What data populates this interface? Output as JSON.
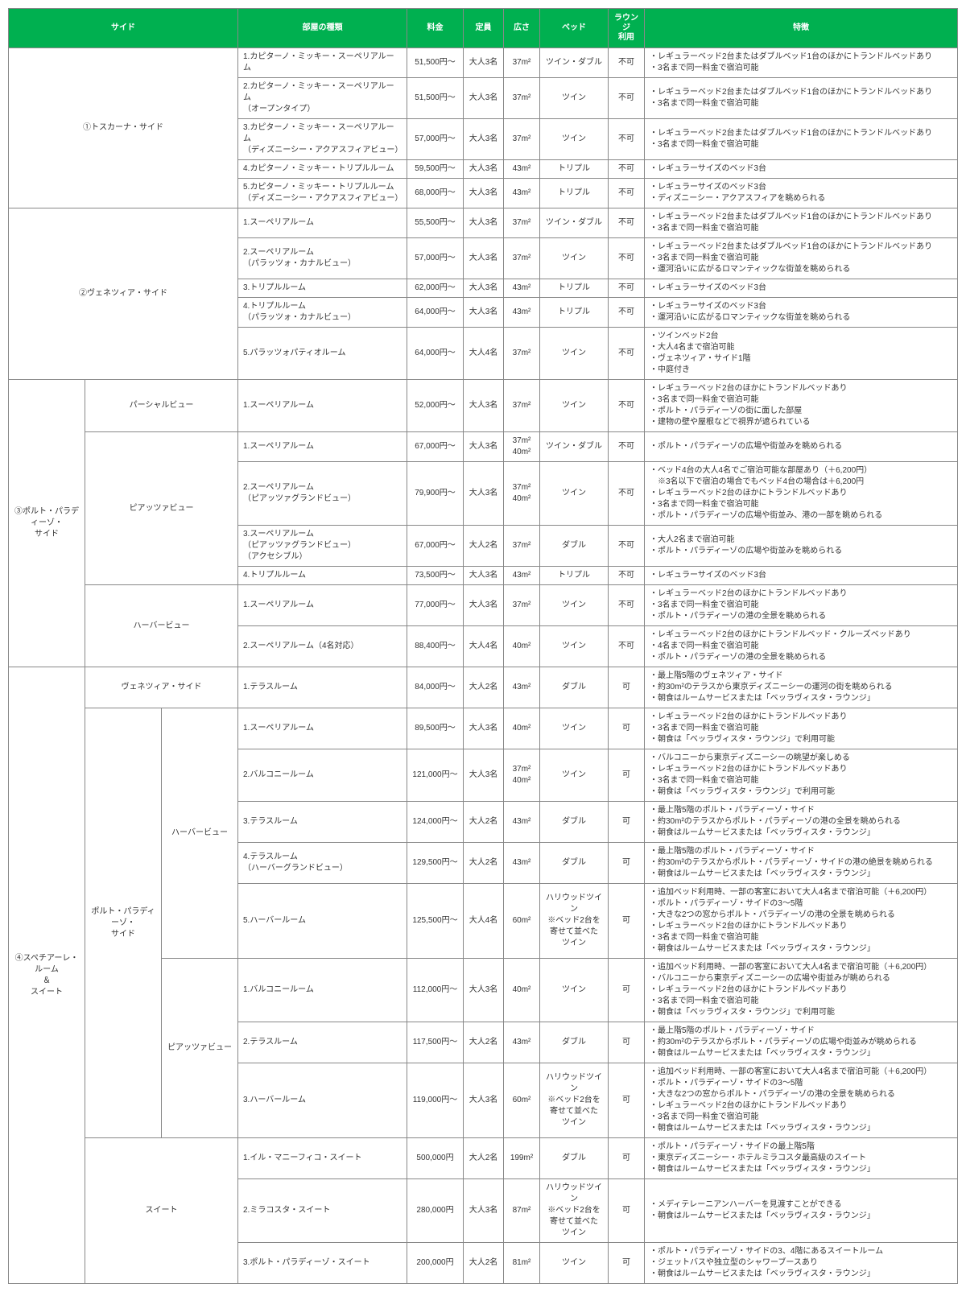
{
  "colors": {
    "header_bg": "#00b050",
    "header_fg": "#ffffff",
    "border": "#888888",
    "text": "#333333",
    "bg": "#ffffff"
  },
  "typography": {
    "font_size_pt": 10,
    "header_font_size_pt": 10
  },
  "headers": {
    "side": "サイド",
    "room_type": "部屋の種類",
    "price": "料金",
    "capacity": "定員",
    "size": "広さ",
    "bed": "ベッド",
    "lounge": "ラウンジ\n利用",
    "features": "特徴"
  },
  "columns": [
    "side",
    "room_type",
    "price",
    "capacity",
    "size",
    "bed",
    "lounge",
    "features"
  ],
  "groups": [
    {
      "side_label": "①トスカーナ・サイド",
      "side_span": 3,
      "rows": [
        {
          "room": "1.カピターノ・ミッキー・スーペリアルーム",
          "price": "51,500円～",
          "cap": "大人3名",
          "size": "37m²",
          "bed": "ツイン・ダブル",
          "lounge": "不可",
          "feat": "・レギュラーベッド2台またはダブルベッド1台のほかにトランドルベッドあり\n・3名まで同一料金で宿泊可能"
        },
        {
          "room": "2.カピターノ・ミッキー・スーペリアルーム\n（オープンタイプ）",
          "price": "51,500円～",
          "cap": "大人3名",
          "size": "37m²",
          "bed": "ツイン",
          "lounge": "不可",
          "feat": "・レギュラーベッド2台またはダブルベッド1台のほかにトランドルベッドあり\n・3名まで同一料金で宿泊可能"
        },
        {
          "room": "3.カピターノ・ミッキー・スーペリアルーム\n（ディズニーシー・アクアスフィアビュー）",
          "price": "57,000円～",
          "cap": "大人3名",
          "size": "37m²",
          "bed": "ツイン",
          "lounge": "不可",
          "feat": "・レギュラーベッド2台またはダブルベッド1台のほかにトランドルベッドあり\n・3名まで同一料金で宿泊可能"
        },
        {
          "room": "4.カピターノ・ミッキー・トリプルルーム",
          "price": "59,500円～",
          "cap": "大人3名",
          "size": "43m²",
          "bed": "トリプル",
          "lounge": "不可",
          "feat": "・レギュラーサイズのベッド3台"
        },
        {
          "room": "5.カピターノ・ミッキー・トリプルルーム\n（ディズニーシー・アクアスフィアビュー）",
          "price": "68,000円～",
          "cap": "大人3名",
          "size": "43m²",
          "bed": "トリプル",
          "lounge": "不可",
          "feat": "・レギュラーサイズのベッド3台\n・ディズニーシー・アクアスフィアを眺められる"
        }
      ]
    },
    {
      "side_label": "②ヴェネツィア・サイド",
      "side_span": 3,
      "rows": [
        {
          "room": "1.スーペリアルーム",
          "price": "55,500円～",
          "cap": "大人3名",
          "size": "37m²",
          "bed": "ツイン・ダブル",
          "lounge": "不可",
          "feat": "・レギュラーベッド2台またはダブルベッド1台のほかにトランドルベッドあり\n・3名まで同一料金で宿泊可能"
        },
        {
          "room": "2.スーペリアルーム\n（パラッツォ・カナルビュー）",
          "price": "57,000円～",
          "cap": "大人3名",
          "size": "37m²",
          "bed": "ツイン",
          "lounge": "不可",
          "feat": "・レギュラーベッド2台またはダブルベッド1台のほかにトランドルベッドあり\n・3名まで同一料金で宿泊可能\n・運河沿いに広がるロマンティックな街並を眺められる"
        },
        {
          "room": "3.トリプルルーム",
          "price": "62,000円～",
          "cap": "大人3名",
          "size": "43m²",
          "bed": "トリプル",
          "lounge": "不可",
          "feat": "・レギュラーサイズのベッド3台"
        },
        {
          "room": "4.トリプルルーム\n（パラッツォ・カナルビュー）",
          "price": "64,000円～",
          "cap": "大人3名",
          "size": "43m²",
          "bed": "トリプル",
          "lounge": "不可",
          "feat": "・レギュラーサイズのベッド3台\n・運河沿いに広がるロマンティックな街並を眺められる"
        },
        {
          "room": "5.パラッツォパティオルーム",
          "price": "64,000円～",
          "cap": "大人4名",
          "size": "37m²",
          "bed": "ツイン",
          "lounge": "不可",
          "feat": "・ツインベッド2台\n・大人4名まで宿泊可能\n・ヴェネツィア・サイド1階\n・中庭付き"
        }
      ]
    },
    {
      "side_label": "③ポルト・パラディーゾ・\nサイド",
      "side_span": 1,
      "subgroups": [
        {
          "sub_label": "パーシャルビュー",
          "sub_span": 2,
          "rows": [
            {
              "room": "1.スーペリアルーム",
              "price": "52,000円～",
              "cap": "大人3名",
              "size": "37m²",
              "bed": "ツイン",
              "lounge": "不可",
              "feat": "・レギュラーベッド2台のほかにトランドルベッドあり\n・3名まで同一料金で宿泊可能\n・ポルト・パラディーゾの街に面した部屋\n・建物の壁や屋根などで視界が遮られている"
            }
          ]
        },
        {
          "sub_label": "ピアッツァビュー",
          "sub_span": 2,
          "rows": [
            {
              "room": "1.スーペリアルーム",
              "price": "67,000円～",
              "cap": "大人3名",
              "size": "37m²\n40m²",
              "bed": "ツイン・ダブル",
              "lounge": "不可",
              "feat": "・ポルト・パラディーゾの広場や街並みを眺められる"
            },
            {
              "room": "2.スーペリアルーム\n（ピアッツァグランドビュー）",
              "price": "79,900円～",
              "cap": "大人3名",
              "size": "37m²\n40m²",
              "bed": "ツイン",
              "lounge": "不可",
              "feat": "・ベッド4台の大人4名でご宿泊可能な部屋あり（＋6,200円）\n　※3名以下で宿泊の場合でもベッド4台の場合は＋6,200円\n・レギュラーベッド2台のほかにトランドルベッドあり\n・3名まで同一料金で宿泊可能\n・ポルト・パラディーゾの広場や街並み、港の一部を眺められる"
            },
            {
              "room": "3.スーペリアルーム\n（ピアッツァグランドビュー）\n（アクセシブル）",
              "price": "67,000円～",
              "cap": "大人2名",
              "size": "37m²",
              "bed": "ダブル",
              "lounge": "不可",
              "feat": "・大人2名まで宿泊可能\n・ポルト・パラディーゾの広場や街並みを眺められる"
            },
            {
              "room": "4.トリプルルーム",
              "price": "73,500円～",
              "cap": "大人3名",
              "size": "43m²",
              "bed": "トリプル",
              "lounge": "不可",
              "feat": "・レギュラーサイズのベッド3台"
            }
          ]
        },
        {
          "sub_label": "ハーバービュー",
          "sub_span": 2,
          "rows": [
            {
              "room": "1.スーペリアルーム",
              "price": "77,000円～",
              "cap": "大人3名",
              "size": "37m²",
              "bed": "ツイン",
              "lounge": "不可",
              "feat": "・レギュラーベッド2台のほかにトランドルベッドあり\n・3名まで同一料金で宿泊可能\n・ポルト・パラディーゾの港の全景を眺められる"
            },
            {
              "room": "2.スーペリアルーム（4名対応）",
              "price": "88,400円～",
              "cap": "大人4名",
              "size": "40m²",
              "bed": "ツイン",
              "lounge": "不可",
              "feat": "・レギュラーベッド2台のほかにトランドルベッド・クルーズベッドあり\n・4名まで同一料金で宿泊可能\n・ポルト・パラディーゾの港の全景を眺められる"
            }
          ]
        }
      ]
    },
    {
      "side_label": "④スペチアーレ・ルーム\n＆\nスイート",
      "side_span": 1,
      "subgroups": [
        {
          "sub_label": "ヴェネツィア・サイド",
          "sub_span": 2,
          "rows": [
            {
              "room": "1.テラスルーム",
              "price": "84,000円～",
              "cap": "大人2名",
              "size": "43m²",
              "bed": "ダブル",
              "lounge": "可",
              "feat": "・最上階5階のヴェネツィア・サイド\n・約30m²のテラスから東京ディズニーシーの運河の街を眺められる\n・朝食はルームサービスまたは「ベッラヴィスタ・ラウンジ」"
            }
          ]
        },
        {
          "sub_label": "ポルト・パラディーゾ・\nサイド",
          "sub_span": 1,
          "nested": [
            {
              "nn_label": "ハーバービュー",
              "rows": [
                {
                  "room": "1.スーペリアルーム",
                  "price": "89,500円～",
                  "cap": "大人3名",
                  "size": "40m²",
                  "bed": "ツイン",
                  "lounge": "可",
                  "feat": "・レギュラーベッド2台のほかにトランドルベッドあり\n・3名まで同一料金で宿泊可能\n・朝食は「ベッラヴィスタ・ラウンジ」で利用可能"
                },
                {
                  "room": "2.バルコニールーム",
                  "price": "121,000円～",
                  "cap": "大人3名",
                  "size": "37m²\n40m²",
                  "bed": "ツイン",
                  "lounge": "可",
                  "feat": "・バルコニーから東京ディズニーシーの眺望が楽しめる\n・レギュラーベッド2台のほかにトランドルベッドあり\n・3名まで同一料金で宿泊可能\n・朝食は「ベッラヴィスタ・ラウンジ」で利用可能"
                },
                {
                  "room": "3.テラスルーム",
                  "price": "124,000円～",
                  "cap": "大人2名",
                  "size": "43m²",
                  "bed": "ダブル",
                  "lounge": "可",
                  "feat": "・最上階5階のポルト・パラディーゾ・サイド\n・約30m²のテラスからポルト・パラディーゾの港の全景を眺められる\n・朝食はルームサービスまたは「ベッラヴィスタ・ラウンジ」"
                },
                {
                  "room": "4.テラスルーム\n（ハーバーグランドビュー）",
                  "price": "129,500円～",
                  "cap": "大人2名",
                  "size": "43m²",
                  "bed": "ダブル",
                  "lounge": "可",
                  "feat": "・最上階5階のポルト・パラディーゾ・サイド\n・約30m²のテラスからポルト・パラディーゾ・サイドの港の絶景を眺められる\n・朝食はルームサービスまたは「ベッラヴィスタ・ラウンジ」"
                },
                {
                  "room": "5.ハーバールーム",
                  "price": "125,500円～",
                  "cap": "大人4名",
                  "size": "60m²",
                  "bed": "ハリウッドツイン\n※ベッド2台を\n寄せて並べた\nツイン",
                  "lounge": "可",
                  "feat": "・追加ベッド利用時、一部の客室において大人4名まで宿泊可能（＋6,200円）\n・ポルト・パラディーゾ・サイドの3～5階\n・大きな2つの窓からポルト・パラディーゾの港の全景を眺められる\n・レギュラーベッド2台のほかにトランドルベッドあり\n・3名まで同一料金で宿泊可能\n・朝食はルームサービスまたは「ベッラヴィスタ・ラウンジ」"
                }
              ]
            },
            {
              "nn_label": "ピアッツァビュー",
              "rows": [
                {
                  "room": "1.バルコニールーム",
                  "price": "112,000円～",
                  "cap": "大人3名",
                  "size": "40m²",
                  "bed": "ツイン",
                  "lounge": "可",
                  "feat": "・追加ベッド利用時、一部の客室において大人4名まで宿泊可能（＋6,200円）\n・バルコニーから東京ディズニーシーの広場や街並みが眺められる\n・レギュラーベッド2台のほかにトランドルベッドあり\n・3名まで同一料金で宿泊可能\n・朝食は「ベッラヴィスタ・ラウンジ」で利用可能"
                },
                {
                  "room": "2.テラスルーム",
                  "price": "117,500円～",
                  "cap": "大人2名",
                  "size": "43m²",
                  "bed": "ダブル",
                  "lounge": "可",
                  "feat": "・最上階5階のポルト・パラディーゾ・サイド\n・約30m²のテラスからポルト・パラディーゾの広場や街並みが眺められる\n・朝食はルームサービスまたは「ベッラヴィスタ・ラウンジ」"
                },
                {
                  "room": "3.ハーバールーム",
                  "price": "119,000円～",
                  "cap": "大人3名",
                  "size": "60m²",
                  "bed": "ハリウッドツイン\n※ベッド2台を\n寄せて並べた\nツイン",
                  "lounge": "可",
                  "feat": "・追加ベッド利用時、一部の客室において大人4名まで宿泊可能（＋6,200円）\n・ポルト・パラディーゾ・サイドの3～5階\n・大きな2つの窓からポルト・パラディーゾの港の全景を眺められる\n・レギュラーベッド2台のほかにトランドルベッドあり\n・3名まで同一料金で宿泊可能\n・朝食はルームサービスまたは「ベッラヴィスタ・ラウンジ」"
                }
              ]
            }
          ]
        },
        {
          "sub_label": "スイート",
          "sub_span": 2,
          "rows": [
            {
              "room": "1.イル・マニーフィコ・スイート",
              "price": "500,000円",
              "cap": "大人2名",
              "size": "199m²",
              "bed": "ダブル",
              "lounge": "可",
              "feat": "・ポルト・パラディーゾ・サイドの最上階5階\n・東京ディズニーシー・ホテルミラコスタ最高級のスイート\n・朝食はルームサービスまたは「ベッラヴィスタ・ラウンジ」"
            },
            {
              "room": "2.ミラコスタ・スイート",
              "price": "280,000円",
              "cap": "大人3名",
              "size": "87m²",
              "bed": "ハリウッドツイン\n※ベッド2台を\n寄せて並べた\nツイン",
              "lounge": "可",
              "feat": "・メディテレーニアンハーバーを見渡すことができる\n・朝食はルームサービスまたは「ベッラヴィスタ・ラウンジ」"
            },
            {
              "room": "3.ポルト・パラディーゾ・スイート",
              "price": "200,000円",
              "cap": "大人2名",
              "size": "81m²",
              "bed": "ツイン",
              "lounge": "可",
              "feat": "・ポルト・パラディーゾ・サイドの3、4階にあるスイートルーム\n・ジェットバスや独立型のシャワーブースあり\n・朝食はルームサービスまたは「ベッラヴィスタ・ラウンジ」"
            }
          ]
        }
      ]
    }
  ]
}
